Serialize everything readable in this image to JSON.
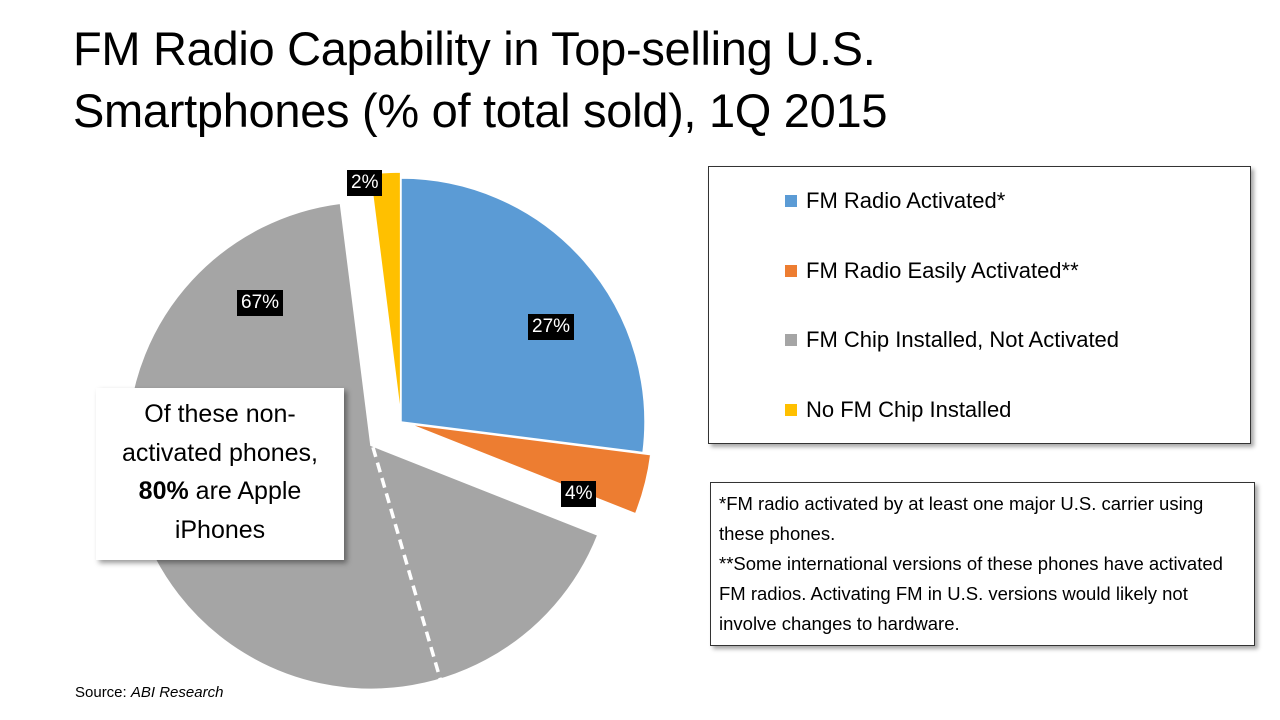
{
  "title_line1": "FM Radio Capability in Top-selling U.S.",
  "title_line2": "Smartphones (% of total sold), 1Q 2015",
  "chart_data": {
    "type": "pie",
    "title": "FM Radio Capability in Top-selling U.S. Smartphones (% of total sold), 1Q 2015",
    "categories": [
      "FM Radio Activated*",
      "FM Radio Easily Activated**",
      "FM Chip Installed, Not Activated",
      "No FM Chip Installed"
    ],
    "values": [
      27,
      4,
      67,
      2
    ],
    "labels": [
      "27%",
      "4%",
      "67%",
      "2%"
    ],
    "colors": [
      "#5B9BD5",
      "#ED7D31",
      "#A5A5A5",
      "#FFC000"
    ],
    "exploded": true,
    "legend_position": "right"
  },
  "callout": {
    "pre": "Of these non-activated phones, ",
    "bold": "80%",
    "post": " are Apple iPhones"
  },
  "notes": {
    "note1": "*FM radio activated by at least one major U.S. carrier using these phones.",
    "note2": "**Some international versions of these phones have activated FM radios. Activating FM in U.S. versions would likely not involve changes to hardware."
  },
  "source": {
    "prefix": "Source: ",
    "name": "ABI Research"
  }
}
